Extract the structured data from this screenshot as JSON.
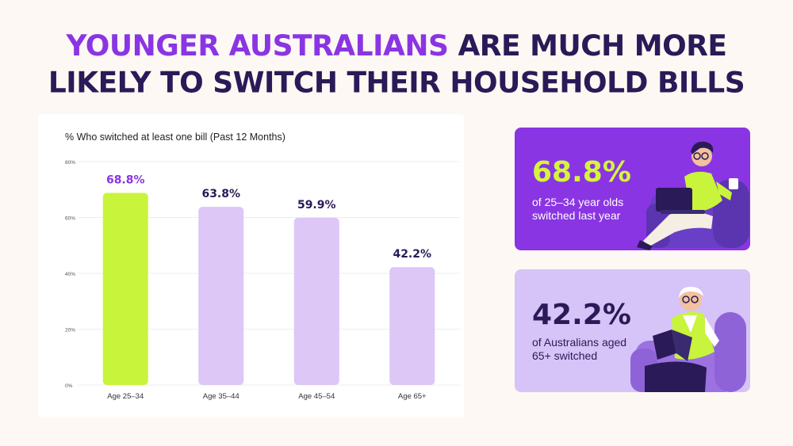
{
  "headline": {
    "highlight": "YOUNGER AUSTRALIANS",
    "rest_line1": " ARE MUCH MORE",
    "line2": "LIKELY TO SWITCH THEIR HOUSEHOLD BILLS"
  },
  "chart_data": {
    "type": "bar",
    "title": "% Who switched at least one bill (Past 12 Months)",
    "categories": [
      "Age 25–34",
      "Age 35–44",
      "Age 45–54",
      "Age 65+"
    ],
    "values": [
      68.8,
      63.8,
      59.9,
      42.2
    ],
    "value_labels": [
      "68.8%",
      "63.8%",
      "59.9%",
      "42.2%"
    ],
    "y_ticks": [
      "0%",
      "20%",
      "40%",
      "60%",
      "80%"
    ],
    "ylim": [
      0,
      80
    ],
    "grid": true,
    "colors": {
      "highlight_bar": "#c8f43c",
      "bar": "#dcc7f7",
      "highlight_label": "#8a35e3",
      "label": "#2a1a57"
    },
    "highlight_index": 0
  },
  "cards": [
    {
      "value": "68.8%",
      "description": "of 25–34 year olds switched last year",
      "background": "#8a35e3",
      "value_color": "#d4f53c"
    },
    {
      "value": "42.2%",
      "description": "of Australians aged 65+ switched",
      "background": "#d6c3f7",
      "value_color": "#2a1a57"
    }
  ],
  "illustrations": [
    "young-man-with-laptop-icon",
    "elderly-man-reading-icon"
  ]
}
